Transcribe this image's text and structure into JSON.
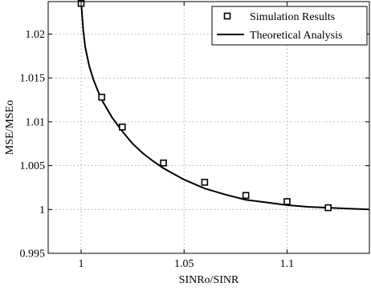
{
  "chart_data": {
    "type": "line",
    "title": "",
    "xlabel": "SINRo/SINR",
    "ylabel": "MSE/MSEo",
    "xlim": [
      0.984,
      1.14
    ],
    "ylim": [
      0.995,
      1.0237
    ],
    "grid": true,
    "legend_position": "top-right",
    "x_ticks": [
      1,
      1.05,
      1.1
    ],
    "x_tick_labels": [
      "1",
      "1.05",
      "1.1"
    ],
    "y_ticks": [
      0.995,
      1,
      1.005,
      1.01,
      1.015,
      1.02
    ],
    "y_tick_labels": [
      "0.995",
      "1",
      "1.005",
      "1.01",
      "1.015",
      "1.02"
    ],
    "series": [
      {
        "name": "Simulation Results",
        "kind": "markers",
        "marker": "square",
        "x": [
          1.0,
          1.01,
          1.02,
          1.04,
          1.06,
          1.08,
          1.1,
          1.12
        ],
        "y": [
          1.0235,
          1.0128,
          1.0094,
          1.0053,
          1.0031,
          1.0016,
          1.0009,
          1.0002
        ]
      },
      {
        "name": "Theoretical Analysis",
        "kind": "line",
        "x": [
          1.0,
          1.001,
          1.002,
          1.004,
          1.006,
          1.008,
          1.01,
          1.015,
          1.02,
          1.025,
          1.03,
          1.035,
          1.04,
          1.05,
          1.06,
          1.07,
          1.08,
          1.09,
          1.1,
          1.11,
          1.12,
          1.13,
          1.14
        ],
        "y": [
          1.0237,
          1.0205,
          1.0185,
          1.0163,
          1.0148,
          1.0136,
          1.0125,
          1.0105,
          1.0089,
          1.0075,
          1.0064,
          1.0055,
          1.0047,
          1.0034,
          1.0024,
          1.0017,
          1.0011,
          1.0008,
          1.0005,
          1.0003,
          1.0002,
          1.0001,
          1.0
        ]
      }
    ]
  },
  "colors": {
    "line": "#000000",
    "marker_fill": "#ffffff",
    "grid": "#9a9a9a",
    "background": "#ffffff"
  }
}
